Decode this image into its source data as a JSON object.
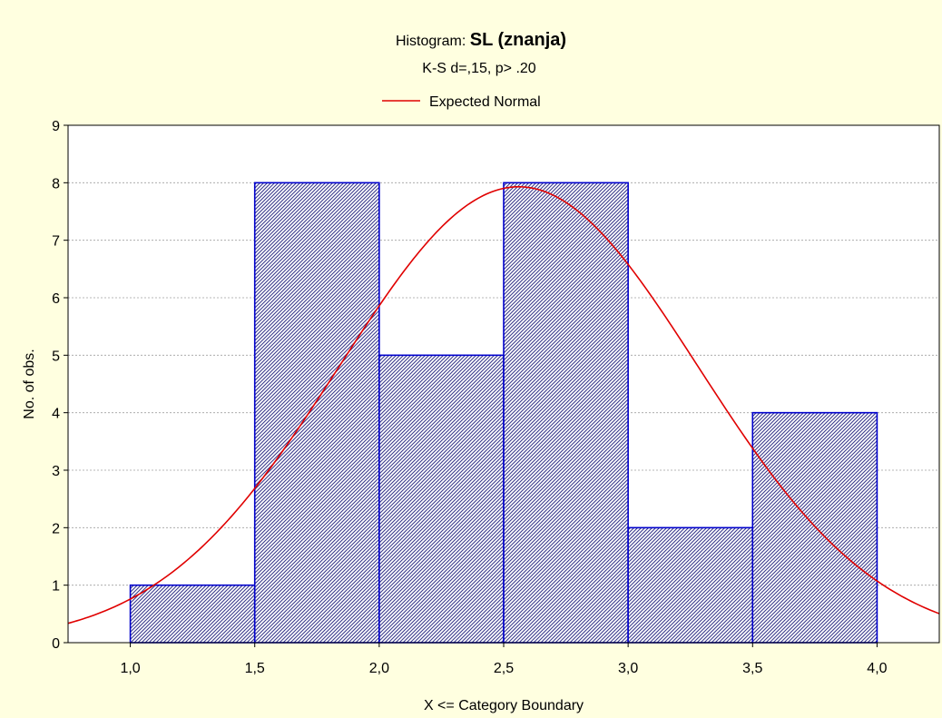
{
  "chart_data": {
    "type": "bar",
    "title_prefix": "Histogram: ",
    "title_main": "SL (znanja)",
    "subtitle": "K-S d=,15, p> .20",
    "legend": {
      "label": "Expected Normal",
      "placement": "top-center"
    },
    "xlabel": "X <= Category Boundary",
    "ylabel": "No. of obs.",
    "xlim": [
      0.75,
      4.25
    ],
    "ylim": [
      0,
      9
    ],
    "x_ticks": [
      1.0,
      1.5,
      2.0,
      2.5,
      3.0,
      3.5,
      4.0
    ],
    "x_tick_labels": [
      "1,0",
      "1,5",
      "2,0",
      "2,5",
      "3,0",
      "3,5",
      "4,0"
    ],
    "y_ticks": [
      0,
      1,
      2,
      3,
      4,
      5,
      6,
      7,
      8,
      9
    ],
    "y_tick_labels": [
      "0",
      "1",
      "2",
      "3",
      "4",
      "5",
      "6",
      "7",
      "8",
      "9"
    ],
    "grid": true,
    "bins": [
      {
        "from": 1.0,
        "to": 1.5,
        "count": 1
      },
      {
        "from": 1.5,
        "to": 2.0,
        "count": 8
      },
      {
        "from": 2.0,
        "to": 2.5,
        "count": 5
      },
      {
        "from": 2.5,
        "to": 3.0,
        "count": 8
      },
      {
        "from": 3.0,
        "to": 3.5,
        "count": 2
      },
      {
        "from": 3.5,
        "to": 4.0,
        "count": 4
      }
    ],
    "expected_normal": {
      "mean": 2.56,
      "sd": 0.72,
      "peak": 7.93
    },
    "colors": {
      "background": "#FFFFE0",
      "plot_area": "#FFFFFF",
      "bar_edge": "#0000CC",
      "bar_hatch": "#3A3A8C",
      "curve": "#E00000",
      "grid": "#A0A0A0",
      "axis": "#000000"
    }
  }
}
